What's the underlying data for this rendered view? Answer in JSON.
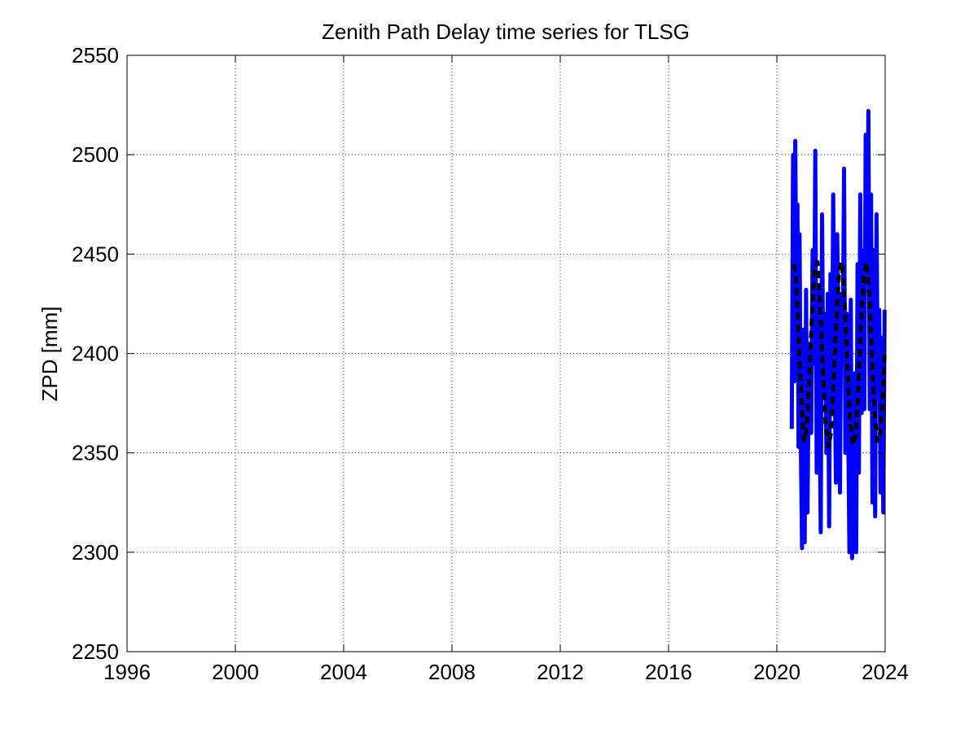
{
  "chart_data": {
    "type": "line",
    "title": "Zenith Path Delay time series for TLSG",
    "xlabel": "",
    "ylabel": "ZPD [mm]",
    "xlim": [
      1996,
      2024
    ],
    "ylim": [
      2250,
      2550
    ],
    "x_ticks": [
      "1996",
      "2000",
      "2004",
      "2008",
      "2012",
      "2016",
      "2020",
      "2024"
    ],
    "y_ticks": [
      "2250",
      "2300",
      "2350",
      "2400",
      "2450",
      "2500",
      "2550"
    ],
    "grid": true,
    "colors": {
      "series": "#0000ff",
      "fit": "#000000",
      "grid": "#444444"
    },
    "series": [
      {
        "style": "solid",
        "color": "#0000ff",
        "x": [
          2020.55,
          2020.6,
          2020.64,
          2020.68,
          2020.72,
          2020.76,
          2020.8,
          2020.84,
          2020.88,
          2020.93,
          2020.98,
          2021.03,
          2021.08,
          2021.13,
          2021.18,
          2021.22,
          2021.27,
          2021.32,
          2021.37,
          2021.42,
          2021.47,
          2021.52,
          2021.57,
          2021.62,
          2021.67,
          2021.72,
          2021.78,
          2021.83,
          2021.88,
          2021.93,
          2021.98,
          2022.03,
          2022.08,
          2022.13,
          2022.18,
          2022.23,
          2022.28,
          2022.33,
          2022.38,
          2022.43,
          2022.48,
          2022.53,
          2022.58,
          2022.63,
          2022.68,
          2022.73,
          2022.78,
          2022.83,
          2022.88,
          2022.93,
          2022.98,
          2023.03,
          2023.08,
          2023.13,
          2023.18,
          2023.23,
          2023.28,
          2023.33,
          2023.38,
          2023.43,
          2023.48,
          2023.53,
          2023.58,
          2023.63,
          2023.68,
          2023.73,
          2023.78,
          2023.83,
          2023.88,
          2023.93,
          2023.98
        ],
        "y": [
          2362,
          2500,
          2386,
          2507,
          2430,
          2475,
          2353,
          2460,
          2360,
          2302,
          2412,
          2305,
          2432,
          2320,
          2390,
          2405,
          2360,
          2452,
          2395,
          2502,
          2340,
          2432,
          2380,
          2310,
          2470,
          2380,
          2420,
          2350,
          2430,
          2313,
          2440,
          2370,
          2480,
          2400,
          2335,
          2460,
          2410,
          2330,
          2430,
          2395,
          2493,
          2350,
          2420,
          2372,
          2300,
          2427,
          2297,
          2360,
          2390,
          2300,
          2445,
          2340,
          2480,
          2370,
          2452,
          2372,
          2510,
          2440,
          2522,
          2372,
          2480,
          2325,
          2452,
          2318,
          2470,
          2380,
          2422,
          2330,
          2408,
          2320,
          2422
        ]
      },
      {
        "style": "dashed",
        "color": "#000000",
        "x": [
          2020.62,
          2020.7,
          2020.8,
          2020.9,
          2021.0,
          2021.1,
          2021.2,
          2021.3,
          2021.4,
          2021.5,
          2021.6,
          2021.7,
          2021.8,
          2021.9,
          2022.0,
          2022.1,
          2022.2,
          2022.3,
          2022.4,
          2022.5,
          2022.6,
          2022.7,
          2022.8,
          2022.9,
          2023.0,
          2023.1,
          2023.2,
          2023.3,
          2023.4,
          2023.5,
          2023.6,
          2023.7,
          2023.8,
          2023.9,
          2023.98
        ],
        "y": [
          2445,
          2440,
          2410,
          2378,
          2356,
          2362,
          2388,
          2420,
          2443,
          2446,
          2425,
          2392,
          2365,
          2353,
          2360,
          2386,
          2418,
          2442,
          2446,
          2428,
          2396,
          2367,
          2354,
          2358,
          2380,
          2412,
          2438,
          2446,
          2432,
          2402,
          2373,
          2356,
          2357,
          2376,
          2400
        ]
      }
    ]
  }
}
